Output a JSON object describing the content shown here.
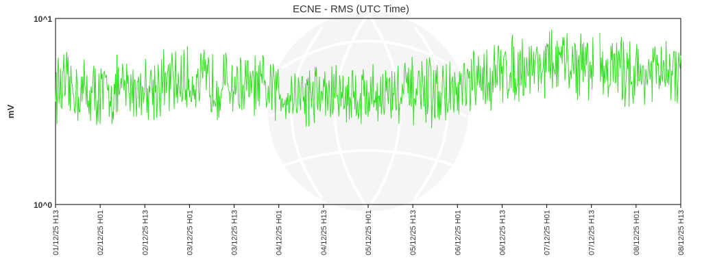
{
  "chart_data": {
    "type": "line",
    "title": "ECNE - RMS (UTC Time)",
    "xlabel": "",
    "ylabel": "mV",
    "y_scale": "log",
    "ylim": [
      1,
      10
    ],
    "y_ticks": [
      "10^0",
      "10^1"
    ],
    "x_ticks": [
      "01/12/25 H13",
      "02/12/25 H01",
      "02/12/25 H13",
      "03/12/25 H01",
      "03/12/25 H13",
      "04/12/25 H01",
      "04/12/25 H13",
      "05/12/25 H01",
      "05/12/25 H13",
      "06/12/25 H01",
      "06/12/25 H13",
      "07/12/25 H01",
      "07/12/25 H13",
      "08/12/25 H01",
      "08/12/25 H13"
    ],
    "grid": false,
    "line_color": "#33dd22",
    "series": [
      {
        "approx_mean_profile": [
          {
            "x": "01/12/25 H13",
            "y": 4.3
          },
          {
            "x": "02/12/25 H01",
            "y": 3.9
          },
          {
            "x": "02/12/25 H13",
            "y": 4.3
          },
          {
            "x": "03/12/25 H01",
            "y": 4.6
          },
          {
            "x": "03/12/25 H13",
            "y": 4.4
          },
          {
            "x": "04/12/25 H01",
            "y": 4.0
          },
          {
            "x": "04/12/25 H13",
            "y": 3.9
          },
          {
            "x": "05/12/25 H01",
            "y": 3.9
          },
          {
            "x": "05/12/25 H13",
            "y": 4.0
          },
          {
            "x": "06/12/25 H01",
            "y": 3.9
          },
          {
            "x": "06/12/25 H13",
            "y": 5.2
          },
          {
            "x": "07/12/25 H01",
            "y": 5.8
          },
          {
            "x": "07/12/25 H13",
            "y": 5.6
          },
          {
            "x": "08/12/25 H01",
            "y": 5.1
          },
          {
            "x": "08/12/25 H13",
            "y": 5.0
          }
        ]
      }
    ]
  }
}
